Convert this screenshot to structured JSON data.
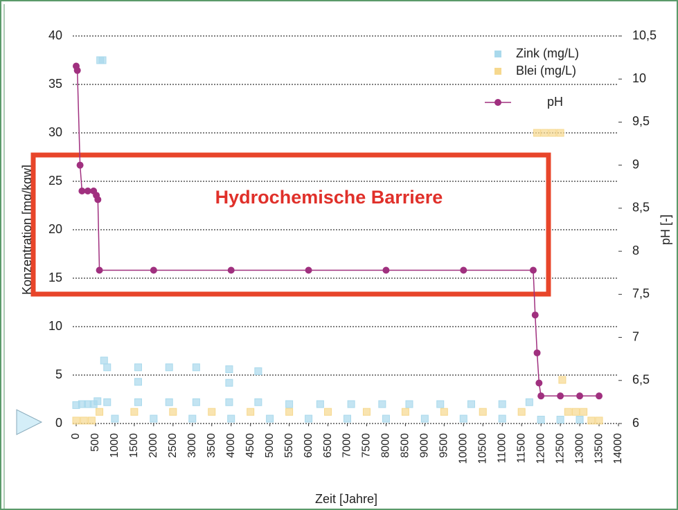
{
  "chart_data": {
    "type": "scatter",
    "annotation": "Hydrochemische Barriere",
    "xlabel": "Zeit  [Jahre]",
    "ylabel": "Konzentration [mg/kgw]",
    "y2label": "pH [-]",
    "xlim": [
      0,
      14000
    ],
    "xticks": [
      0,
      500,
      1000,
      1500,
      2000,
      2500,
      3000,
      3500,
      4000,
      4500,
      5000,
      5500,
      6000,
      6500,
      7000,
      7500,
      8000,
      8500,
      9000,
      9500,
      10000,
      10500,
      11000,
      11500,
      12000,
      12500,
      13000,
      13500,
      14000
    ],
    "ylim": [
      0,
      40
    ],
    "yticks": [
      0,
      5,
      10,
      15,
      20,
      25,
      30,
      35,
      40
    ],
    "y2lim": [
      6,
      10.5
    ],
    "y2ticks": [
      6,
      {
        "value": 6.5,
        "label": "6,5"
      },
      7,
      {
        "value": 7.5,
        "label": "7,5"
      },
      8,
      {
        "value": 8.5,
        "label": "8,5"
      },
      9,
      {
        "value": 9.5,
        "label": "9,5"
      },
      10,
      {
        "value": 10.5,
        "label": "10,5"
      }
    ],
    "grid": true,
    "legend": "upper right",
    "series": [
      {
        "name": "Zink (mg/L)",
        "color": "#a9d9ec",
        "marker": "square",
        "x": [
          0,
          150,
          300,
          450,
          550,
          620,
          680,
          720,
          800,
          800,
          1600,
          1600,
          1600,
          2400,
          2400,
          3100,
          3100,
          3950,
          3950,
          3950,
          4700,
          4700,
          5500,
          6300,
          7100,
          7900,
          8600,
          9400,
          10200,
          11000,
          11700,
          1000,
          2000,
          3000,
          4000,
          5000,
          6000,
          7000,
          8000,
          9000,
          10000,
          11000,
          12000,
          12500,
          13000
        ],
        "values": [
          1.9,
          2,
          2,
          2,
          2.3,
          37.5,
          37.5,
          6.5,
          5.8,
          2.2,
          5.8,
          4.3,
          2.2,
          5.8,
          2.2,
          5.8,
          2.2,
          5.6,
          4.2,
          2.2,
          5.4,
          2.2,
          2,
          2,
          2,
          2,
          2,
          2,
          2,
          2,
          2.2,
          0.5,
          0.5,
          0.5,
          0.5,
          0.5,
          0.5,
          0.5,
          0.5,
          0.5,
          0.5,
          0.5,
          0.4,
          0.4,
          0.4
        ]
      },
      {
        "name": "Blei  (mg/L)",
        "color": "#f6d88e",
        "marker": "square",
        "x": [
          0,
          200,
          400,
          600,
          1500,
          2500,
          3500,
          4500,
          5500,
          6500,
          7500,
          8500,
          9500,
          10500,
          11500,
          11900,
          12100,
          12300,
          12500,
          12550,
          12700,
          12900,
          13100,
          13300,
          13500
        ],
        "values": [
          0.3,
          0.3,
          0.3,
          1.2,
          1.2,
          1.2,
          1.2,
          1.2,
          1.2,
          1.2,
          1.2,
          1.2,
          1.2,
          1.2,
          1.2,
          30,
          30,
          30,
          30,
          4.5,
          1.2,
          1.2,
          1.2,
          0.3,
          0.3
        ]
      },
      {
        "name": "pH",
        "color": "#a0307f",
        "marker": "circle",
        "axis": "y2",
        "line": true,
        "x": [
          0,
          30,
          100,
          150,
          300,
          450,
          520,
          560,
          600,
          2000,
          4000,
          6000,
          8000,
          10000,
          11800,
          11850,
          11900,
          11950,
          12000,
          12500,
          13000,
          13500
        ],
        "values": [
          10.15,
          10.1,
          9.0,
          8.7,
          8.7,
          8.7,
          8.65,
          8.6,
          7.78,
          7.78,
          7.78,
          7.78,
          7.78,
          7.78,
          7.78,
          7.26,
          6.82,
          6.47,
          6.32,
          6.32,
          6.32,
          6.32
        ]
      }
    ]
  }
}
